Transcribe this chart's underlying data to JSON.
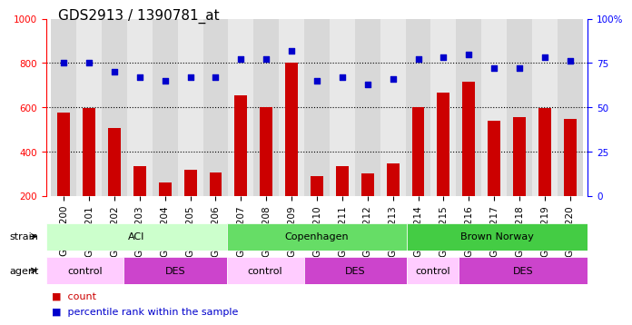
{
  "title": "GDS2913 / 1390781_at",
  "samples": [
    "GSM92200",
    "GSM92201",
    "GSM92202",
    "GSM92203",
    "GSM92204",
    "GSM92205",
    "GSM92206",
    "GSM92207",
    "GSM92208",
    "GSM92209",
    "GSM92210",
    "GSM92211",
    "GSM92212",
    "GSM92213",
    "GSM92214",
    "GSM92215",
    "GSM92216",
    "GSM92217",
    "GSM92218",
    "GSM92219",
    "GSM92220"
  ],
  "counts": [
    575,
    595,
    505,
    335,
    260,
    315,
    305,
    655,
    600,
    800,
    290,
    335,
    300,
    345,
    600,
    665,
    715,
    540,
    555,
    595,
    545
  ],
  "percentiles": [
    75,
    75,
    70,
    67,
    65,
    67,
    67,
    77,
    77,
    82,
    65,
    67,
    63,
    66,
    77,
    78,
    80,
    72,
    72,
    78,
    76
  ],
  "ylim_left": [
    200,
    1000
  ],
  "ylim_right": [
    0,
    100
  ],
  "bar_color": "#cc0000",
  "dot_color": "#0000cc",
  "grid_color": "#000000",
  "bg_color": "#e0e0e0",
  "strain_groups": [
    {
      "label": "ACI",
      "start": 0,
      "end": 6,
      "color": "#ccffcc"
    },
    {
      "label": "Copenhagen",
      "start": 7,
      "end": 13,
      "color": "#66dd66"
    },
    {
      "label": "Brown Norway",
      "start": 14,
      "end": 20,
      "color": "#44cc44"
    }
  ],
  "agent_groups": [
    {
      "label": "control",
      "start": 0,
      "end": 2,
      "color": "#ffccff"
    },
    {
      "label": "DES",
      "start": 3,
      "end": 6,
      "color": "#dd44dd"
    },
    {
      "label": "control",
      "start": 7,
      "end": 9,
      "color": "#ffccff"
    },
    {
      "label": "DES",
      "start": 10,
      "end": 13,
      "color": "#dd44dd"
    },
    {
      "label": "control",
      "start": 14,
      "end": 15,
      "color": "#ffccff"
    },
    {
      "label": "DES",
      "start": 16,
      "end": 20,
      "color": "#dd44dd"
    }
  ],
  "ylabel_left": "",
  "ylabel_right": "",
  "legend_count_color": "#cc0000",
  "legend_pct_color": "#0000cc",
  "title_fontsize": 11,
  "tick_fontsize": 7.5,
  "label_fontsize": 8
}
